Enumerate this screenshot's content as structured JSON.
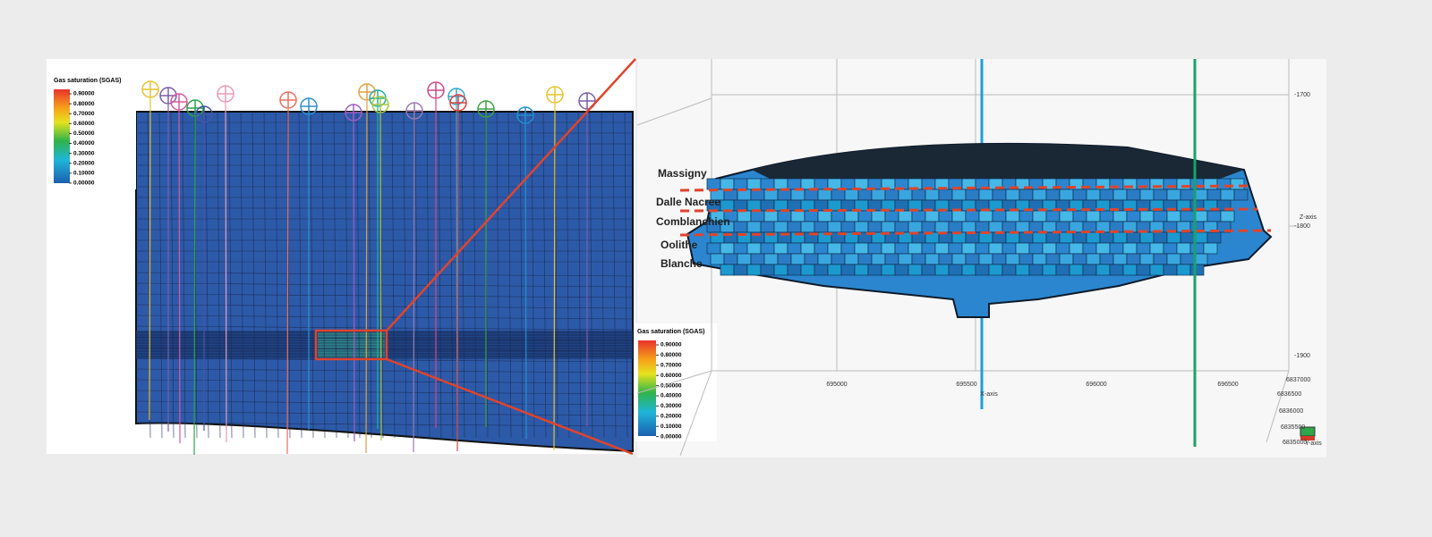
{
  "left_panel": {
    "colorbar": {
      "title": "Gas saturation (SGAS)",
      "ticks": [
        "0.90000",
        "0.80000",
        "0.70000",
        "0.60000",
        "0.50000",
        "0.40000",
        "0.30000",
        "0.20000",
        "0.10000",
        "0.00000"
      ]
    }
  },
  "inset_colorbar": {
    "title": "Gas saturation (SGAS)",
    "ticks": [
      "0.90000",
      "0.80000",
      "0.70000",
      "0.60000",
      "0.50000",
      "0.40000",
      "0.30000",
      "0.20000",
      "0.10000",
      "0.00000"
    ]
  },
  "right_panel": {
    "horizons": [
      "Massigny",
      "Dalle Nacree",
      "Comblanchien",
      "Oolithe Blanche"
    ],
    "z_axis": {
      "label": "Z-axis",
      "ticks": [
        "-1700",
        "-1800",
        "-1900"
      ]
    },
    "x_axis": {
      "label": "X-axis",
      "ticks": [
        "695000",
        "695500",
        "696000",
        "696500"
      ]
    },
    "y_axis": {
      "label": "Y-axis",
      "ticks": [
        "6837000",
        "6836500",
        "6836000",
        "6835500",
        "6835000"
      ]
    }
  }
}
